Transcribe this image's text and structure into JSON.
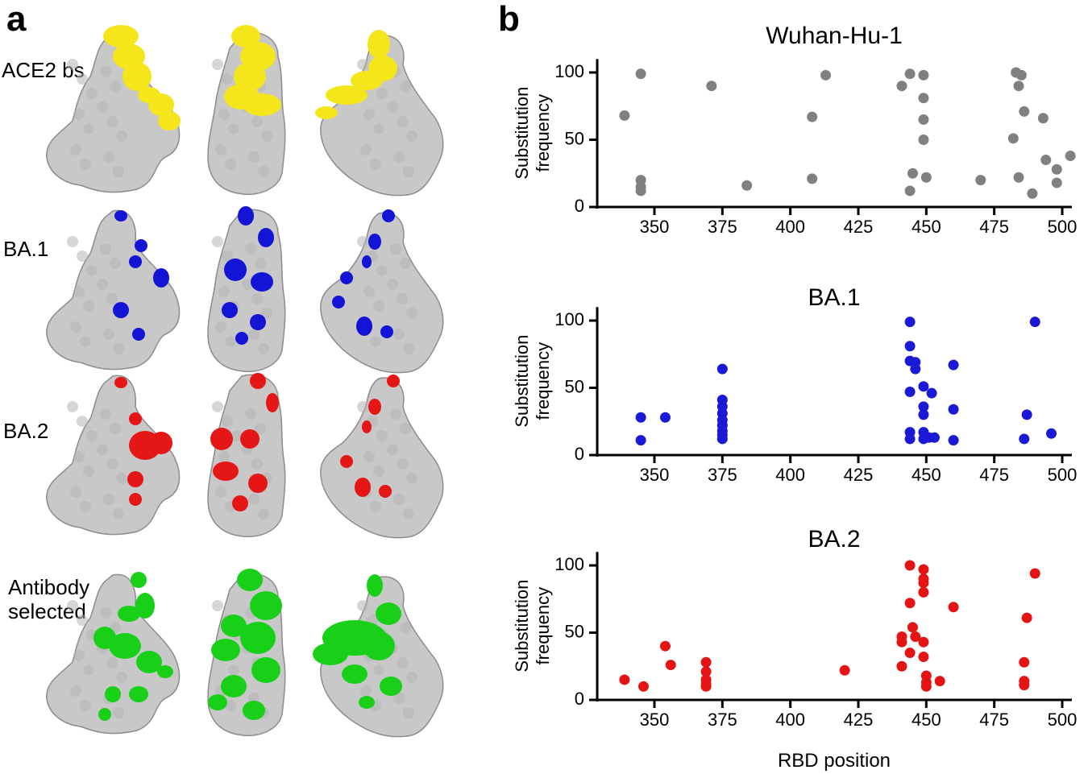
{
  "panels": {
    "a": "a",
    "b": "b"
  },
  "structure_rows": [
    {
      "label": "ACE2 bs",
      "color": "#f5e51b"
    },
    {
      "label": "BA.1",
      "color": "#1414d6"
    },
    {
      "label": "BA.2",
      "color": "#e51616"
    },
    {
      "label": "Antibody\nselected",
      "color": "#18d018"
    }
  ],
  "surface_color": "#c8c8c8",
  "chart_data": [
    {
      "type": "scatter",
      "title": "Wuhan-Hu-1",
      "xlabel": "",
      "ylabel": "Substitution\nfrequency",
      "xlim": [
        330,
        505
      ],
      "ylim": [
        0,
        110
      ],
      "xticks": [
        350,
        375,
        400,
        425,
        450,
        475,
        500
      ],
      "yticks": [
        0,
        50,
        100
      ],
      "color": "#808080",
      "points": [
        [
          339,
          68
        ],
        [
          345,
          99
        ],
        [
          345,
          20
        ],
        [
          345,
          15
        ],
        [
          345,
          12
        ],
        [
          371,
          90
        ],
        [
          384,
          16
        ],
        [
          408,
          67
        ],
        [
          408,
          21
        ],
        [
          413,
          98
        ],
        [
          441,
          90
        ],
        [
          444,
          99
        ],
        [
          444,
          12
        ],
        [
          445,
          25
        ],
        [
          449,
          98
        ],
        [
          449,
          81
        ],
        [
          449,
          65
        ],
        [
          449,
          50
        ],
        [
          450,
          22
        ],
        [
          470,
          20
        ],
        [
          482,
          51
        ],
        [
          483,
          100
        ],
        [
          484,
          22
        ],
        [
          484,
          90
        ],
        [
          485,
          98
        ],
        [
          486,
          71
        ],
        [
          489,
          10
        ],
        [
          493,
          66
        ],
        [
          494,
          35
        ],
        [
          498,
          28
        ],
        [
          498,
          18
        ],
        [
          503,
          38
        ]
      ]
    },
    {
      "type": "scatter",
      "title": "BA.1",
      "xlabel": "",
      "ylabel": "Substitution\nfrequency",
      "xlim": [
        330,
        505
      ],
      "ylim": [
        0,
        110
      ],
      "xticks": [
        350,
        375,
        400,
        425,
        450,
        475,
        500
      ],
      "yticks": [
        0,
        50,
        100
      ],
      "color": "#1a1ad6",
      "points": [
        [
          345,
          28
        ],
        [
          345,
          11
        ],
        [
          354,
          28
        ],
        [
          375,
          64
        ],
        [
          375,
          41
        ],
        [
          375,
          36
        ],
        [
          375,
          31
        ],
        [
          375,
          26
        ],
        [
          375,
          22
        ],
        [
          375,
          18
        ],
        [
          375,
          15
        ],
        [
          375,
          12
        ],
        [
          444,
          99
        ],
        [
          444,
          81
        ],
        [
          444,
          70
        ],
        [
          446,
          69
        ],
        [
          446,
          64
        ],
        [
          444,
          47
        ],
        [
          444,
          17
        ],
        [
          444,
          12
        ],
        [
          449,
          51
        ],
        [
          449,
          36
        ],
        [
          449,
          30
        ],
        [
          449,
          17
        ],
        [
          449,
          12
        ],
        [
          451,
          13
        ],
        [
          452,
          46
        ],
        [
          453,
          13
        ],
        [
          460,
          67
        ],
        [
          460,
          34
        ],
        [
          460,
          11
        ],
        [
          486,
          12
        ],
        [
          487,
          30
        ],
        [
          490,
          99
        ],
        [
          496,
          16
        ]
      ]
    },
    {
      "type": "scatter",
      "title": "BA.2",
      "xlabel": "RBD position",
      "ylabel": "Substitution\nfrequency",
      "xlim": [
        330,
        505
      ],
      "ylim": [
        0,
        110
      ],
      "xticks": [
        350,
        375,
        400,
        425,
        450,
        475,
        500
      ],
      "yticks": [
        0,
        50,
        100
      ],
      "color": "#e51414",
      "points": [
        [
          339,
          15
        ],
        [
          346,
          10
        ],
        [
          354,
          40
        ],
        [
          356,
          26
        ],
        [
          369,
          28
        ],
        [
          369,
          21
        ],
        [
          369,
          15
        ],
        [
          369,
          12
        ],
        [
          369,
          10
        ],
        [
          420,
          22
        ],
        [
          441,
          47
        ],
        [
          441,
          43
        ],
        [
          441,
          25
        ],
        [
          444,
          100
        ],
        [
          444,
          72
        ],
        [
          445,
          54
        ],
        [
          444,
          35
        ],
        [
          446,
          47
        ],
        [
          449,
          97
        ],
        [
          449,
          90
        ],
        [
          449,
          87
        ],
        [
          449,
          80
        ],
        [
          449,
          43
        ],
        [
          449,
          32
        ],
        [
          450,
          18
        ],
        [
          450,
          13
        ],
        [
          450,
          10
        ],
        [
          455,
          14
        ],
        [
          460,
          69
        ],
        [
          486,
          28
        ],
        [
          486,
          14
        ],
        [
          486,
          11
        ],
        [
          487,
          61
        ],
        [
          490,
          94
        ]
      ]
    }
  ]
}
